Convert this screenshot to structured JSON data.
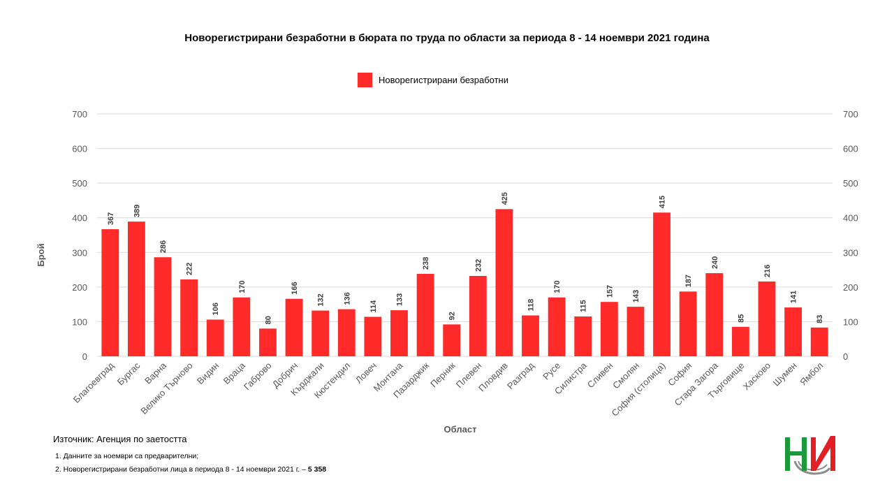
{
  "chart_data": {
    "type": "bar",
    "title": "Новорегистрирани безработни в бюрата по труда по области за периода 8 - 14 ноември 2021 година",
    "xlabel": "Област",
    "ylabel": "Брой",
    "ylim": [
      0,
      700
    ],
    "yticks": [
      0,
      100,
      200,
      300,
      400,
      500,
      600,
      700
    ],
    "grid": true,
    "legend_position": "top-center",
    "colors": {
      "bar": "#ff2a2a",
      "grid": "#d9d9d9",
      "axis_text": "#595959"
    },
    "categories": [
      "Благоевград",
      "Бургас",
      "Варна",
      "Велико Търново",
      "Видин",
      "Враца",
      "Габрово",
      "Добрич",
      "Кърджали",
      "Кюстендил",
      "Ловеч",
      "Монтана",
      "Пазарджик",
      "Перник",
      "Плевен",
      "Пловдив",
      "Разград",
      "Русе",
      "Силистра",
      "Сливен",
      "Смолян",
      "София (столица)",
      "София",
      "Стара Загора",
      "Търговище",
      "Хасково",
      "Шумен",
      "Ямбол"
    ],
    "series": [
      {
        "name": "Новорегистрирани безработни",
        "values": [
          367,
          389,
          286,
          222,
          106,
          170,
          80,
          166,
          132,
          136,
          114,
          133,
          238,
          92,
          232,
          425,
          118,
          170,
          115,
          157,
          143,
          415,
          187,
          240,
          85,
          216,
          141,
          83
        ]
      }
    ]
  },
  "source": "Източник: Агенция по заетостта",
  "notes": {
    "n1": "1.   Данните за ноември  са предварителни;",
    "n2_text": "2.   Новорегистрирани  безработни лица в периода  8 - 14 ноември  2021 г. – ",
    "n2_value": "5 358"
  },
  "logo": {
    "name": "nsi-logo-icon",
    "colors": [
      "#1a9a3a",
      "#e31e24",
      "#8c8c8c"
    ]
  }
}
